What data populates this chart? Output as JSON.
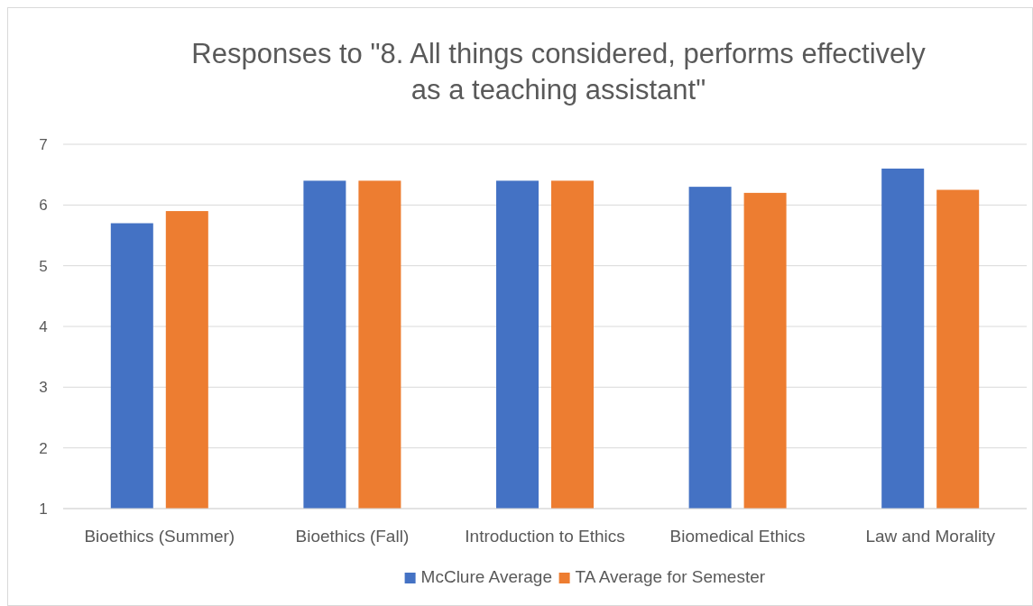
{
  "chart_data": {
    "type": "bar",
    "title": "Responses to \"8. All things considered, performs effectively as a teaching assistant\"",
    "categories": [
      "Bioethics (Summer)",
      "Bioethics (Fall)",
      "Introduction to Ethics",
      "Biomedical Ethics",
      "Law and Morality"
    ],
    "series": [
      {
        "name": "McClure Average",
        "color": "#4472c4",
        "values": [
          5.7,
          6.4,
          6.4,
          6.3,
          6.6
        ]
      },
      {
        "name": "TA Average for Semester",
        "color": "#ed7d31",
        "values": [
          5.9,
          6.4,
          6.4,
          6.2,
          6.25
        ]
      }
    ],
    "ylim": [
      1,
      7
    ],
    "yticks": [
      1,
      2,
      3,
      4,
      5,
      6,
      7
    ],
    "grid": "y",
    "legend": "bottom"
  }
}
